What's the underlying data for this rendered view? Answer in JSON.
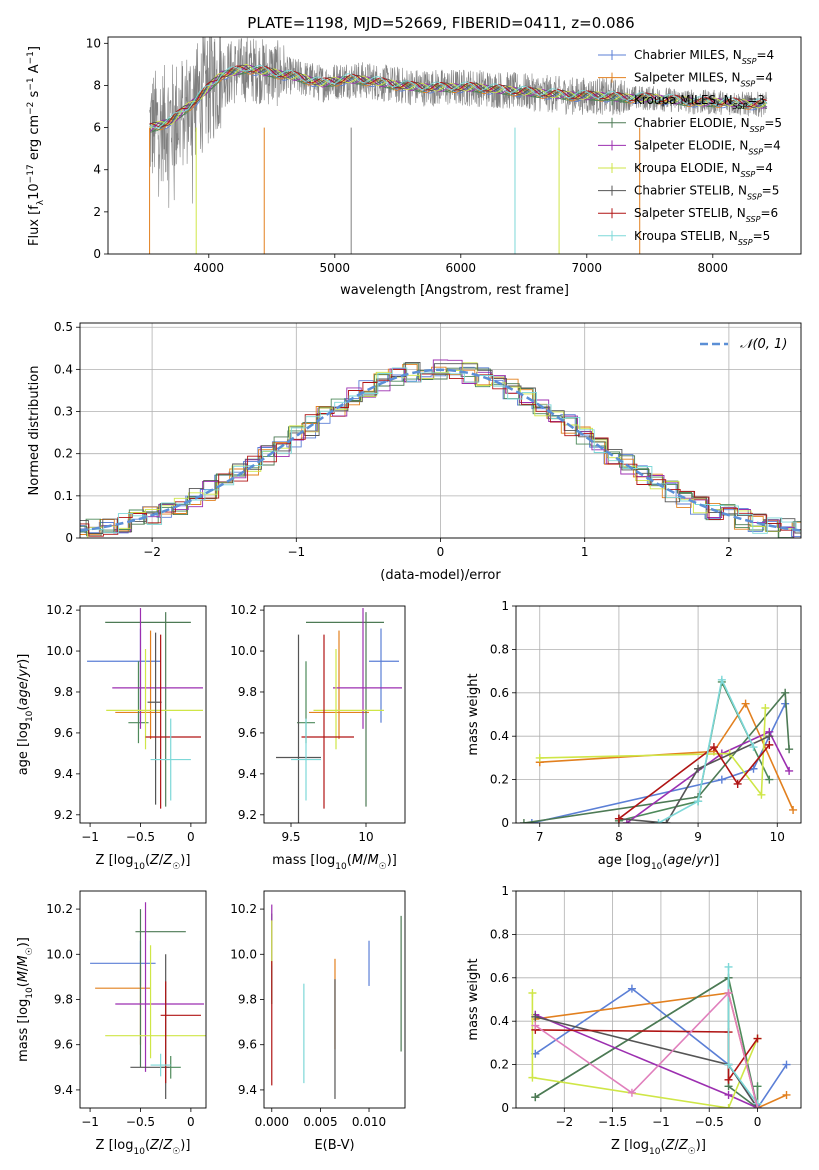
{
  "figure": {
    "title": "PLATE=1198, MJD=52669, FIBERID=0411, z=0.086"
  },
  "series": [
    {
      "name": "Chabrier MILES",
      "nssp": "4",
      "color": "#5b7fd6"
    },
    {
      "name": "Salpeter MILES",
      "nssp": "4",
      "color": "#e2801f"
    },
    {
      "name": "Kroupa MILES",
      "nssp": "3",
      "color": "#4e8a5b"
    },
    {
      "name": "Chabrier ELODIE",
      "nssp": "5",
      "color": "#4d7a55"
    },
    {
      "name": "Salpeter ELODIE",
      "nssp": "4",
      "color": "#9c2fb0"
    },
    {
      "name": "Kroupa ELODIE",
      "nssp": "4",
      "color": "#cfe647"
    },
    {
      "name": "Chabrier STELIB",
      "nssp": "5",
      "color": "#555555"
    },
    {
      "name": "Salpeter STELIB",
      "nssp": "6",
      "color": "#b01414"
    },
    {
      "name": "Kroupa STELIB",
      "nssp": "5",
      "color": "#7dd8d8"
    }
  ],
  "chart_data": [
    {
      "id": "spectrum",
      "type": "line",
      "xlabel": "wavelength [Angstrom, rest frame]",
      "ylabel": "Flux [f_λ 10^-17 erg cm^-2 s^-1 A^-1]",
      "xlim": [
        3200,
        8700
      ],
      "ylim": [
        0,
        10.3
      ],
      "xticks": [
        4000,
        5000,
        6000,
        7000,
        8000
      ],
      "yticks": [
        0,
        2,
        4,
        6,
        8,
        10
      ],
      "legend": "upper right",
      "data_color": "#808080",
      "model_wavelength": [
        3500,
        3700,
        3900,
        4100,
        4300,
        4500,
        4700,
        4900,
        5100,
        5300,
        5500,
        5700,
        5900,
        6100,
        6300,
        6500,
        6700,
        6900,
        7100,
        7300,
        7500,
        7700,
        7900,
        8100,
        8300
      ],
      "model_flux": [
        5.9,
        6.3,
        7.3,
        8.5,
        8.8,
        8.6,
        8.4,
        8.1,
        8.3,
        8.2,
        8.0,
        7.9,
        7.9,
        7.9,
        7.8,
        7.7,
        7.6,
        7.5,
        7.5,
        7.4,
        7.4,
        7.3,
        7.2,
        7.2,
        7.1
      ]
    },
    {
      "id": "residuals",
      "type": "histogram",
      "xlabel": "(data-model)/error",
      "ylabel": "Normed distribution",
      "xlim": [
        -2.5,
        2.5
      ],
      "ylim": [
        0,
        0.51
      ],
      "xticks": [
        -2,
        -1,
        0,
        1,
        2
      ],
      "yticks": [
        0.0,
        0.1,
        0.2,
        0.3,
        0.4,
        0.5
      ],
      "grid": true,
      "legend": "upper right",
      "reference_label": "𝒩(0, 1)",
      "reference_color": "#5b8fd6"
    },
    {
      "id": "age-vs-Z",
      "type": "errorbar",
      "xlabel": "Z [log10(Z/Z☉)]",
      "ylabel": "age [log10(age/yr)]",
      "xlim": [
        -1.1,
        0.15
      ],
      "ylim": [
        9.16,
        10.22
      ],
      "xticks": [
        -1.0,
        -0.5,
        0.0
      ],
      "yticks": [
        9.2,
        9.4,
        9.6,
        9.8,
        10.0,
        10.2
      ],
      "points": [
        {
          "series": 0,
          "x": -0.5,
          "xerr": [
            0.53,
            0.2
          ],
          "y": 9.95,
          "yerr": [
            0.3,
            0.16
          ]
        },
        {
          "series": 1,
          "x": -0.4,
          "xerr": [
            0.35,
            0.1
          ],
          "y": 9.7,
          "yerr": [
            0.13,
            0.4
          ]
        },
        {
          "series": 2,
          "x": -0.52,
          "xerr": [
            0.1,
            0.1
          ],
          "y": 9.65,
          "yerr": [
            0.1,
            0.3
          ]
        },
        {
          "series": 3,
          "x": -0.25,
          "xerr": [
            0.6,
            0.25
          ],
          "y": 10.14,
          "yerr": [
            0.9,
            0.05
          ]
        },
        {
          "series": 4,
          "x": -0.5,
          "xerr": [
            0.28,
            0.62
          ],
          "y": 9.82,
          "yerr": [
            0.2,
            0.39
          ]
        },
        {
          "series": 5,
          "x": -0.45,
          "xerr": [
            0.39,
            0.57
          ],
          "y": 9.71,
          "yerr": [
            0.19,
            0.3
          ]
        },
        {
          "series": 6,
          "x": -0.35,
          "xerr": [
            0.08,
            0.06
          ],
          "y": 9.75,
          "yerr": [
            0.5,
            0.34
          ]
        },
        {
          "series": 7,
          "x": -0.3,
          "xerr": [
            0.15,
            0.4
          ],
          "y": 9.58,
          "yerr": [
            0.35,
            0.5
          ]
        },
        {
          "series": 8,
          "x": -0.2,
          "xerr": [
            0.2,
            0.2
          ],
          "y": 9.47,
          "yerr": [
            0.2,
            0.2
          ]
        }
      ]
    },
    {
      "id": "age-vs-mass",
      "type": "errorbar",
      "xlabel": "mass [log10(M/M☉)]",
      "xlim": [
        9.32,
        10.26
      ],
      "ylim": [
        9.16,
        10.22
      ],
      "xticks": [
        9.5,
        10.0
      ],
      "yticks": [
        9.2,
        9.4,
        9.6,
        9.8,
        10.0,
        10.2
      ],
      "points": [
        {
          "series": 0,
          "x": 10.1,
          "xerr": [
            0.08,
            0.12
          ],
          "y": 9.95,
          "yerr": [
            0.3,
            0.16
          ]
        },
        {
          "series": 1,
          "x": 9.82,
          "xerr": [
            0.2,
            0.2
          ],
          "y": 9.7,
          "yerr": [
            0.13,
            0.4
          ]
        },
        {
          "series": 2,
          "x": 9.6,
          "xerr": [
            0.06,
            0.06
          ],
          "y": 9.65,
          "yerr": [
            0.1,
            0.3
          ]
        },
        {
          "series": 3,
          "x": 10.0,
          "xerr": [
            0.4,
            0.12
          ],
          "y": 10.14,
          "yerr": [
            0.9,
            0.05
          ]
        },
        {
          "series": 4,
          "x": 9.98,
          "xerr": [
            0.2,
            0.26
          ],
          "y": 9.82,
          "yerr": [
            0.2,
            0.39
          ]
        },
        {
          "series": 5,
          "x": 9.8,
          "xerr": [
            0.15,
            0.32
          ],
          "y": 9.71,
          "yerr": [
            0.19,
            0.3
          ]
        },
        {
          "series": 6,
          "x": 9.55,
          "xerr": [
            0.15,
            0.15
          ],
          "y": 9.48,
          "yerr": [
            0.34,
            0.6
          ]
        },
        {
          "series": 7,
          "x": 9.72,
          "xerr": [
            0.15,
            0.2
          ],
          "y": 9.58,
          "yerr": [
            0.35,
            0.5
          ]
        },
        {
          "series": 8,
          "x": 9.6,
          "xerr": [
            0.1,
            0.1
          ],
          "y": 9.47,
          "yerr": [
            0.2,
            0.2
          ]
        }
      ]
    },
    {
      "id": "mass-weight-vs-age",
      "type": "line",
      "xlabel": "age [log10(age/yr)]",
      "ylabel": "mass weight",
      "xlim": [
        6.7,
        10.3
      ],
      "ylim": [
        0,
        1.0
      ],
      "xticks": [
        7,
        8,
        9,
        10
      ],
      "yticks": [
        0.0,
        0.2,
        0.4,
        0.6,
        0.8,
        1.0
      ],
      "grid": true,
      "lines": [
        {
          "series": 0,
          "x": [
            6.9,
            9.3,
            9.7,
            10.1
          ],
          "y": [
            0.0,
            0.2,
            0.25,
            0.55
          ]
        },
        {
          "series": 1,
          "x": [
            7.0,
            9.2,
            9.6,
            10.2
          ],
          "y": [
            0.28,
            0.33,
            0.55,
            0.06
          ]
        },
        {
          "series": 2,
          "x": [
            8.0,
            9.0,
            9.3,
            9.9
          ],
          "y": [
            0.01,
            0.1,
            0.65,
            0.2
          ]
        },
        {
          "series": 3,
          "x": [
            6.8,
            9.0,
            10.1,
            10.15
          ],
          "y": [
            0.0,
            0.12,
            0.6,
            0.34
          ]
        },
        {
          "series": 4,
          "x": [
            8.1,
            9.3,
            9.9,
            10.15
          ],
          "y": [
            0.0,
            0.32,
            0.42,
            0.24
          ]
        },
        {
          "series": 5,
          "x": [
            7.0,
            9.4,
            9.8,
            9.85
          ],
          "y": [
            0.3,
            0.32,
            0.13,
            0.53
          ]
        },
        {
          "series": 6,
          "x": [
            8.0,
            8.6,
            9.0,
            9.9
          ],
          "y": [
            0.02,
            0.0,
            0.25,
            0.4
          ]
        },
        {
          "series": 7,
          "x": [
            8.0,
            9.2,
            9.5,
            9.9
          ],
          "y": [
            0.02,
            0.35,
            0.18,
            0.36
          ]
        },
        {
          "series": 8,
          "x": [
            8.5,
            9.0,
            9.3,
            9.7
          ],
          "y": [
            0.0,
            0.1,
            0.66,
            0.35
          ]
        }
      ]
    },
    {
      "id": "mass-vs-Z",
      "type": "errorbar",
      "xlabel": "Z [log10(Z/Z☉)]",
      "ylabel": "mass [log10(M/M☉)]",
      "xlim": [
        -1.1,
        0.15
      ],
      "ylim": [
        9.32,
        10.28
      ],
      "xticks": [
        -1.0,
        -0.5,
        0.0
      ],
      "yticks": [
        9.4,
        9.6,
        9.8,
        10.0,
        10.2
      ],
      "points": [
        {
          "series": 0,
          "x": -0.5,
          "xerr": [
            0.5,
            0.15
          ],
          "y": 9.96,
          "yerr": [
            0.1,
            0.1
          ]
        },
        {
          "series": 1,
          "x": -0.5,
          "xerr": [
            0.45,
            0.1
          ],
          "y": 9.85,
          "yerr": [
            0.25,
            0.1
          ]
        },
        {
          "series": 2,
          "x": -0.2,
          "xerr": [
            0.1,
            0.1
          ],
          "y": 9.5,
          "yerr": [
            0.05,
            0.05
          ]
        },
        {
          "series": 3,
          "x": -0.5,
          "xerr": [
            0.05,
            0.45
          ],
          "y": 10.1,
          "yerr": [
            0.6,
            0.1
          ]
        },
        {
          "series": 4,
          "x": -0.45,
          "xerr": [
            0.3,
            0.58
          ],
          "y": 9.78,
          "yerr": [
            0.3,
            0.45
          ]
        },
        {
          "series": 5,
          "x": -0.4,
          "xerr": [
            0.45,
            0.55
          ],
          "y": 9.64,
          "yerr": [
            0.1,
            0.4
          ]
        },
        {
          "series": 6,
          "x": -0.25,
          "xerr": [
            0.35,
            0.04
          ],
          "y": 9.5,
          "yerr": [
            0.14,
            0.5
          ]
        },
        {
          "series": 7,
          "x": -0.25,
          "xerr": [
            0.05,
            0.35
          ],
          "y": 9.73,
          "yerr": [
            0.3,
            0.15
          ]
        },
        {
          "series": 8,
          "x": -0.3,
          "xerr": [
            0.1,
            0.1
          ],
          "y": 9.51,
          "yerr": [
            0.05,
            0.05
          ]
        }
      ]
    },
    {
      "id": "mass-vs-EBV",
      "type": "errorbar",
      "xlabel": "E(B-V)",
      "xlim": [
        -0.0008,
        0.0137
      ],
      "ylim": [
        9.32,
        10.28
      ],
      "xticks": [
        0.0,
        0.005,
        0.01
      ],
      "xticklabels": [
        "0.000",
        "0.005",
        "0.010"
      ],
      "yticks": [
        9.4,
        9.6,
        9.8,
        10.0,
        10.2
      ],
      "points": [
        {
          "series": 0,
          "x": 0.01,
          "xerr": [
            0,
            0
          ],
          "y": 9.96,
          "yerr": [
            0.1,
            0.1
          ]
        },
        {
          "series": 1,
          "x": 0.0065,
          "xerr": [
            0,
            0
          ],
          "y": 9.88,
          "yerr": [
            0.3,
            0.1
          ]
        },
        {
          "series": 2,
          "x": 0.0,
          "xerr": [
            0,
            0
          ],
          "y": 9.98,
          "yerr": [
            0.2,
            0.2
          ]
        },
        {
          "series": 3,
          "x": 0.0133,
          "xerr": [
            0,
            0
          ],
          "y": 9.87,
          "yerr": [
            0.3,
            0.3
          ]
        },
        {
          "series": 4,
          "x": 0.0,
          "xerr": [
            0,
            0
          ],
          "y": 10.1,
          "yerr": [
            0.15,
            0.12
          ]
        },
        {
          "series": 5,
          "x": 0.0,
          "xerr": [
            0,
            0
          ],
          "y": 10.05,
          "yerr": [
            0.1,
            0.1
          ]
        },
        {
          "series": 6,
          "x": 0.0065,
          "xerr": [
            0,
            0
          ],
          "y": 9.62,
          "yerr": [
            0.26,
            0.27
          ]
        },
        {
          "series": 7,
          "x": 0.0,
          "xerr": [
            0,
            0
          ],
          "y": 9.7,
          "yerr": [
            0.28,
            0.27
          ]
        },
        {
          "series": 8,
          "x": 0.0033,
          "xerr": [
            0,
            0
          ],
          "y": 9.65,
          "yerr": [
            0.22,
            0.22
          ]
        }
      ]
    },
    {
      "id": "mass-weight-vs-Z",
      "type": "line",
      "xlabel": "Z [log10(Z/Z☉)]",
      "ylabel": "mass weight",
      "xlim": [
        -2.5,
        0.45
      ],
      "ylim": [
        0,
        1.0
      ],
      "xticks": [
        -2.0,
        -1.5,
        -1.0,
        -0.5,
        0.0
      ],
      "yticks": [
        0.0,
        0.2,
        0.4,
        0.6,
        0.8,
        1.0
      ],
      "grid": true,
      "lines": [
        {
          "series": 0,
          "x": [
            -2.3,
            -1.3,
            -0.3,
            0.0,
            0.3
          ],
          "y": [
            0.25,
            0.55,
            0.2,
            0.0,
            0.2
          ]
        },
        {
          "series": 1,
          "x": [
            -2.3,
            -0.3,
            0.0,
            0.3
          ],
          "y": [
            0.41,
            0.53,
            0.0,
            0.06
          ]
        },
        {
          "series": 2,
          "x": [
            -2.3,
            -0.3,
            0.0,
            0.0
          ],
          "y": [
            0.05,
            0.6,
            0.0,
            0.1
          ]
        },
        {
          "series": 3,
          "x": [
            -2.3,
            -0.3,
            -0.3,
            0.0
          ],
          "y": [
            0.05,
            0.6,
            0.1,
            0.0
          ]
        },
        {
          "series": 4,
          "x": [
            -2.3,
            -0.3,
            0.0
          ],
          "y": [
            0.43,
            0.06,
            0.0
          ]
        },
        {
          "series": 5,
          "x": [
            -2.33,
            -2.33,
            -0.3,
            0.0
          ],
          "y": [
            0.53,
            0.14,
            0.0,
            0.32
          ]
        },
        {
          "series": 6,
          "x": [
            -2.3,
            -0.3,
            0.0
          ],
          "y": [
            0.42,
            0.2,
            0.0
          ]
        },
        {
          "series": 7,
          "x": [
            -2.3,
            -0.3,
            -0.3,
            0.0
          ],
          "y": [
            0.36,
            0.35,
            0.13,
            0.32
          ]
        },
        {
          "series": 8,
          "x": [
            -0.3,
            -0.3,
            0.0
          ],
          "y": [
            0.65,
            0.2,
            0.02
          ]
        }
      ],
      "extra_lines": [
        {
          "series": 8,
          "x": [
            -2.3,
            -1.3,
            -0.3,
            0.0
          ],
          "y": [
            0.38,
            0.07,
            0.53,
            0.0
          ],
          "color": "#e07fbc"
        }
      ]
    }
  ],
  "spectrum_gaps": [
    {
      "x": 3530,
      "color": "#e2801f"
    },
    {
      "x": 3900,
      "color": "#cfe647"
    },
    {
      "x": 4440,
      "color": "#e2801f"
    },
    {
      "x": 5130,
      "color": "#808080"
    },
    {
      "x": 6430,
      "color": "#7dd8d8"
    },
    {
      "x": 6780,
      "color": "#cfe647"
    },
    {
      "x": 7420,
      "color": "#e2801f"
    }
  ]
}
